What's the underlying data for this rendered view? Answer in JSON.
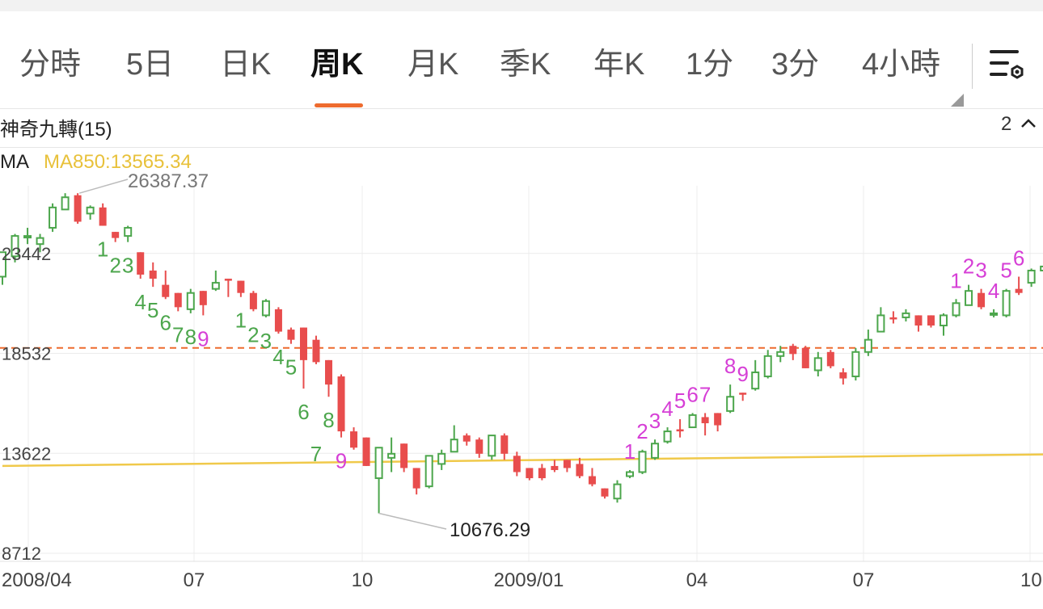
{
  "tabs": [
    {
      "label": "分時",
      "active": false
    },
    {
      "label": "5日",
      "active": false
    },
    {
      "label": "日K",
      "active": false
    },
    {
      "label": "周K",
      "active": true
    },
    {
      "label": "月K",
      "active": false
    },
    {
      "label": "季K",
      "active": false
    },
    {
      "label": "年K",
      "active": false
    },
    {
      "label": "1分",
      "active": false
    },
    {
      "label": "3分",
      "active": false
    },
    {
      "label": "4小時",
      "active": false
    }
  ],
  "indicator": {
    "name": "神奇九轉(15)",
    "page": "2"
  },
  "ma": {
    "label": "MA",
    "value_text": "MA850:13565.34"
  },
  "colors": {
    "up": "#4ca64c",
    "down": "#e84d4d",
    "ma": "#f0c94a",
    "current_price_line": "#ee6b2e",
    "td_buy": "#4ca64c",
    "td_sell": "#d63fd6",
    "accent": "#ee6b2e"
  },
  "icons": {
    "settings": "list-settings-icon",
    "collapse": "chevron-up-icon"
  },
  "chart_data": {
    "type": "candlestick",
    "y_ticks": [
      "23442",
      "18532",
      "13622",
      "8712"
    ],
    "x_ticks": [
      "2008/04",
      "07",
      "10",
      "2009/01",
      "04",
      "07",
      "10"
    ],
    "annotations": {
      "high": "26387.37",
      "low": "10676.29",
      "current_line_value": 18800
    },
    "ylim": [
      8712,
      28352
    ],
    "ma850": [
      [
        0,
        13000
      ],
      [
        85,
        13580
      ]
    ],
    "candles": [
      [
        22300,
        23500,
        21900,
        23400
      ],
      [
        23300,
        24300,
        23000,
        24400
      ],
      [
        24300,
        24300,
        23900,
        24700
      ],
      [
        23900,
        24200,
        23500,
        24400
      ],
      [
        24700,
        25700,
        24500,
        25900
      ],
      [
        25600,
        26200,
        25600,
        26400
      ],
      [
        26300,
        25000,
        24900,
        26400
      ],
      [
        25400,
        25700,
        25100,
        25800
      ],
      [
        25700,
        24800,
        24800,
        25900
      ],
      [
        24500,
        24200,
        24000,
        24500
      ],
      [
        24300,
        24700,
        24000,
        24800
      ],
      [
        23500,
        22400,
        22200,
        23500
      ],
      [
        22600,
        22200,
        21800,
        23000
      ],
      [
        21900,
        21300,
        21200,
        22600
      ],
      [
        21500,
        20800,
        20600,
        21500
      ],
      [
        20700,
        21500,
        20500,
        21700
      ],
      [
        21600,
        20900,
        20400,
        21600
      ],
      [
        21700,
        22000,
        21600,
        22600
      ],
      [
        22200,
        22100,
        21300,
        22200
      ],
      [
        22100,
        21500,
        21300,
        22100
      ],
      [
        21500,
        20700,
        20600,
        21600
      ],
      [
        20400,
        21100,
        20300,
        21200
      ],
      [
        20700,
        19600,
        19500,
        20800
      ],
      [
        19700,
        19200,
        19000,
        19800
      ],
      [
        19800,
        18200,
        16800,
        19800
      ],
      [
        19200,
        18100,
        18000,
        19400
      ],
      [
        18200,
        17000,
        16400,
        18200
      ],
      [
        17400,
        14700,
        14400,
        17500
      ],
      [
        14700,
        13900,
        13800,
        14900
      ],
      [
        14400,
        13000,
        13000,
        14400
      ],
      [
        12400,
        13900,
        10676,
        13900
      ],
      [
        13400,
        13600,
        12700,
        14400
      ],
      [
        14100,
        12900,
        12700,
        14100
      ],
      [
        12900,
        11900,
        11600,
        12900
      ],
      [
        12000,
        13500,
        11900,
        13500
      ],
      [
        13100,
        13600,
        12800,
        13800
      ],
      [
        13700,
        14300,
        13700,
        15000
      ],
      [
        14500,
        14200,
        14000,
        14600
      ],
      [
        14300,
        13600,
        13400,
        14400
      ],
      [
        13500,
        14500,
        13300,
        14500
      ],
      [
        14500,
        13600,
        13300,
        14600
      ],
      [
        13500,
        12700,
        12500,
        13700
      ],
      [
        12900,
        12400,
        12300,
        12900
      ],
      [
        12900,
        12400,
        12300,
        13100
      ],
      [
        13000,
        12800,
        12700,
        13300
      ],
      [
        13300,
        12900,
        12700,
        13300
      ],
      [
        13100,
        12500,
        12400,
        13400
      ],
      [
        12500,
        12100,
        12000,
        12900
      ],
      [
        11900,
        11500,
        11400,
        11900
      ],
      [
        11400,
        12100,
        11200,
        12300
      ],
      [
        12500,
        12700,
        12400,
        12800
      ],
      [
        12700,
        13700,
        12600,
        13800
      ],
      [
        13400,
        14100,
        13300,
        14300
      ],
      [
        14200,
        14700,
        14100,
        14900
      ],
      [
        14800,
        14700,
        14400,
        15300
      ],
      [
        14900,
        15500,
        14900,
        15600
      ],
      [
        15400,
        15100,
        14500,
        15600
      ],
      [
        15600,
        15000,
        14700,
        15600
      ],
      [
        15700,
        16400,
        15600,
        17000
      ],
      [
        16600,
        16500,
        16200,
        16600
      ],
      [
        16800,
        17600,
        16700,
        18200
      ],
      [
        17400,
        18400,
        17300,
        18700
      ],
      [
        18400,
        18600,
        18100,
        18900
      ],
      [
        18900,
        18500,
        18200,
        19000
      ],
      [
        18800,
        17800,
        17800,
        18900
      ],
      [
        17700,
        18300,
        17400,
        18600
      ],
      [
        18600,
        17900,
        17800,
        18700
      ],
      [
        17600,
        17300,
        17000,
        17800
      ],
      [
        17400,
        18600,
        17200,
        18800
      ],
      [
        18600,
        19200,
        18400,
        19700
      ],
      [
        19600,
        20400,
        19600,
        20800
      ],
      [
        20300,
        20200,
        20000,
        20600
      ],
      [
        20300,
        20500,
        20100,
        20700
      ],
      [
        20400,
        19900,
        19600,
        20400
      ],
      [
        20400,
        19900,
        19800,
        20400
      ],
      [
        19900,
        20400,
        19400,
        20500
      ],
      [
        20400,
        21000,
        20300,
        21200
      ],
      [
        20900,
        21600,
        20900,
        21900
      ],
      [
        21500,
        20800,
        20700,
        21700
      ],
      [
        20500,
        20500,
        20300,
        20700
      ],
      [
        20400,
        21600,
        20300,
        21700
      ],
      [
        21700,
        21500,
        21400,
        22300
      ],
      [
        22000,
        22600,
        21800,
        22700
      ],
      [
        22600,
        22800,
        22400,
        23200
      ]
    ],
    "td_labels": [
      {
        "i": 8,
        "t": "1",
        "c": "buy",
        "dy": 38
      },
      {
        "i": 9,
        "t": "2",
        "c": "buy",
        "dy": 38
      },
      {
        "i": 10,
        "t": "3",
        "c": "buy",
        "dy": 38
      },
      {
        "i": 11,
        "t": "4",
        "c": "buy",
        "dy": 38
      },
      {
        "i": 12,
        "t": "5",
        "c": "buy",
        "dy": 38
      },
      {
        "i": 13,
        "t": "6",
        "c": "buy",
        "dy": 38
      },
      {
        "i": 14,
        "t": "7",
        "c": "buy",
        "dy": 38
      },
      {
        "i": 15,
        "t": "8",
        "c": "buy",
        "dy": 38
      },
      {
        "i": 16,
        "t": "9",
        "c": "sell",
        "dy": 38
      },
      {
        "i": 19,
        "t": "1",
        "c": "buy",
        "dy": 38
      },
      {
        "i": 20,
        "t": "2",
        "c": "buy",
        "dy": 38
      },
      {
        "i": 21,
        "t": "3",
        "c": "buy",
        "dy": 38
      },
      {
        "i": 22,
        "t": "4",
        "c": "buy",
        "dy": 38
      },
      {
        "i": 23,
        "t": "5",
        "c": "buy",
        "dy": 38
      },
      {
        "i": 24,
        "t": "6",
        "c": "buy",
        "dy": 38
      },
      {
        "i": 25,
        "t": "7",
        "c": "buy",
        "dy": 120
      },
      {
        "i": 26,
        "t": "8",
        "c": "buy",
        "dy": 38
      },
      {
        "i": 27,
        "t": "9",
        "c": "sell",
        "dy": 38
      },
      {
        "i": 50,
        "t": "1",
        "c": "sell",
        "dy": -14
      },
      {
        "i": 51,
        "t": "2",
        "c": "sell",
        "dy": -14
      },
      {
        "i": 52,
        "t": "3",
        "c": "sell",
        "dy": -14
      },
      {
        "i": 53,
        "t": "4",
        "c": "sell",
        "dy": -14
      },
      {
        "i": 54,
        "t": "5",
        "c": "sell",
        "dy": -14
      },
      {
        "i": 55,
        "t": "6",
        "c": "sell",
        "dy": -14
      },
      {
        "i": 56,
        "t": "7",
        "c": "sell",
        "dy": -14
      },
      {
        "i": 58,
        "t": "8",
        "c": "sell",
        "dy": -14
      },
      {
        "i": 59,
        "t": "9",
        "c": "sell",
        "dy": -14
      },
      {
        "i": 76,
        "t": "1",
        "c": "sell",
        "dy": -14
      },
      {
        "i": 77,
        "t": "2",
        "c": "sell",
        "dy": -14
      },
      {
        "i": 78,
        "t": "3",
        "c": "sell",
        "dy": -14
      },
      {
        "i": 79,
        "t": "4",
        "c": "sell",
        "dy": -14
      },
      {
        "i": 80,
        "t": "5",
        "c": "sell",
        "dy": -14
      },
      {
        "i": 81,
        "t": "6",
        "c": "sell",
        "dy": -14
      }
    ]
  }
}
